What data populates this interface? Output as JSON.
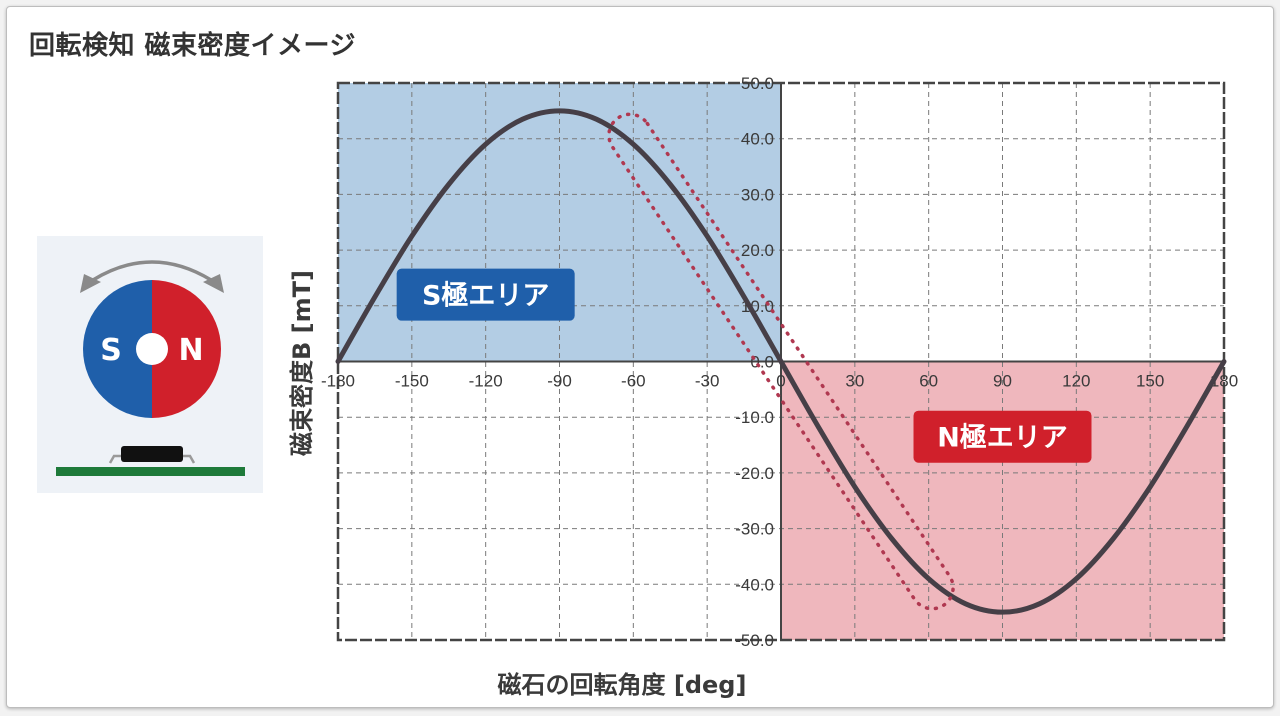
{
  "title": "回転検知 磁束密度イメージ",
  "colors": {
    "s_pole": "#1f5faa",
    "n_pole": "#d0202b",
    "s_area_fill": "#b3cde4",
    "n_area_fill": "#efb7bd",
    "curve": "#463f47",
    "highlight": "#b03850",
    "board": "#1e7a3a",
    "chip": "#111111"
  },
  "illustration": {
    "s_label": "S",
    "n_label": "N",
    "icons": [
      "rotation-arrow-icon",
      "magnet-icon",
      "sensor-chip-icon",
      "circuit-board-icon"
    ]
  },
  "chart_data": {
    "type": "line",
    "title": "",
    "xlabel": "磁石の回転角度 [deg]",
    "ylabel": "磁束密度B [mT]",
    "xlim": [
      -180,
      180
    ],
    "ylim": [
      -50,
      50
    ],
    "grid": true,
    "x_ticks": [
      -180,
      -150,
      -120,
      -90,
      -60,
      -30,
      0,
      30,
      60,
      90,
      120,
      150,
      180
    ],
    "x_tick_labels": [
      "-180",
      "-150",
      "-120",
      "-90",
      "-60",
      "-30",
      "0",
      "30",
      "60",
      "90",
      "120",
      "150",
      "180"
    ],
    "y_ticks": [
      50,
      40,
      30,
      20,
      10,
      0,
      -10,
      -20,
      -30,
      -40,
      -50
    ],
    "y_tick_labels": [
      "50.0",
      "40.0",
      "30.0",
      "20.0",
      "10.0",
      "0.0",
      "-10.0",
      "-20.0",
      "-30.0",
      "-40.0",
      "-50.0"
    ],
    "series": [
      {
        "x": [
          -180,
          -165,
          -150,
          -135,
          -120,
          -105,
          -90,
          -75,
          -60,
          -45,
          -30,
          -15,
          0,
          15,
          30,
          45,
          60,
          75,
          90,
          105,
          120,
          135,
          150,
          165,
          180
        ],
        "y": [
          0,
          11.6,
          22.5,
          31.8,
          39.0,
          43.5,
          45.0,
          43.5,
          39.0,
          31.8,
          22.5,
          11.6,
          0,
          -11.6,
          -22.5,
          -31.8,
          -39.0,
          -43.5,
          -45.0,
          -43.5,
          -39.0,
          -31.8,
          -22.5,
          -11.6,
          0
        ]
      }
    ],
    "regions": [
      {
        "label": "S極エリア",
        "x_range": [
          -180,
          0
        ],
        "y_range": [
          0,
          50
        ]
      },
      {
        "label": "N極エリア",
        "x_range": [
          0,
          180
        ],
        "y_range": [
          -50,
          0
        ]
      }
    ],
    "highlight": {
      "style": "dotted-loop",
      "x_range": [
        -65,
        65
      ],
      "y_range": [
        -43,
        43
      ]
    }
  }
}
